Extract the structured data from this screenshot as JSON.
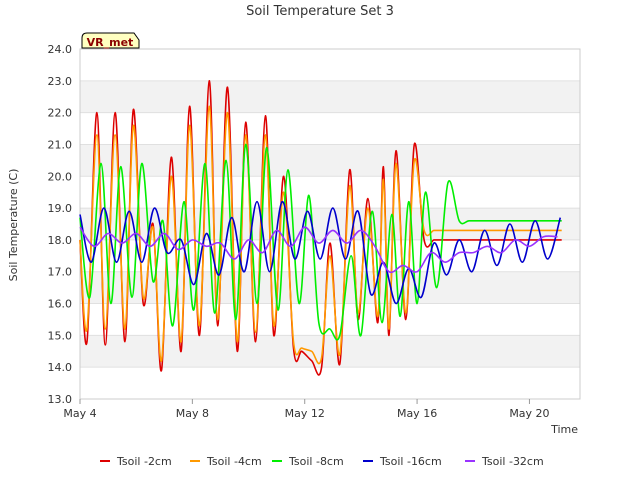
{
  "chart_data": {
    "type": "line",
    "title": "Soil Temperature Set 3",
    "xlabel": "Time",
    "ylabel": "Soil Temperature (C)",
    "badge": "VR_met",
    "ylim": [
      13.0,
      24.0
    ],
    "xlim": [
      4.0,
      21.8
    ],
    "yticks": [
      "13.0",
      "14.0",
      "15.0",
      "16.0",
      "17.0",
      "18.0",
      "19.0",
      "20.0",
      "21.0",
      "22.0",
      "23.0",
      "24.0"
    ],
    "yticks_values": [
      13,
      14,
      15,
      16,
      17,
      18,
      19,
      20,
      21,
      22,
      23,
      24
    ],
    "xticks": [
      "May 4",
      "May 8",
      "May 12",
      "May 16",
      "May 20"
    ],
    "xticks_values": [
      4,
      8,
      12,
      16,
      20
    ],
    "grid": true,
    "legend_position": "bottom",
    "series": [
      {
        "name": "Tsoil -2cm",
        "color": "#dd0000",
        "x": [
          4.0,
          4.25,
          4.6,
          4.9,
          5.25,
          5.6,
          5.9,
          6.25,
          6.6,
          6.9,
          7.25,
          7.6,
          7.9,
          8.25,
          8.6,
          8.9,
          9.25,
          9.6,
          9.9,
          10.25,
          10.6,
          10.9,
          11.25,
          11.6,
          11.9,
          12.25,
          12.6,
          12.9,
          13.25,
          13.6,
          13.9,
          14.25,
          14.6,
          14.8,
          15.0,
          15.25,
          15.6,
          15.9,
          16.25,
          16.6,
          16.9,
          17.25,
          17.6,
          17.9,
          18.25,
          18.6,
          18.9,
          19.25,
          19.6,
          19.9,
          20.25,
          20.6,
          20.9,
          21.15
        ],
        "y": [
          18.0,
          14.8,
          22.0,
          14.7,
          22.0,
          14.8,
          22.1,
          16.0,
          18.5,
          13.9,
          20.6,
          14.5,
          22.2,
          15.0,
          23.0,
          15.3,
          22.8,
          14.5,
          21.7,
          14.8,
          21.9,
          15.0,
          20.0,
          14.6,
          14.5,
          14.2,
          14.0,
          17.9,
          14.1,
          20.2,
          15.5,
          19.3,
          15.4,
          20.3,
          15.0,
          20.8,
          15.5,
          21.0,
          18.0,
          18.0,
          18.0,
          18.0,
          18.0,
          18.0,
          18.0,
          18.0,
          18.0,
          18.0,
          18.0,
          18.0,
          18.0,
          18.0,
          18.0,
          18.0
        ]
      },
      {
        "name": "Tsoil -4cm",
        "color": "#ff9900",
        "x": [
          4.0,
          4.25,
          4.6,
          4.9,
          5.25,
          5.6,
          5.9,
          6.25,
          6.6,
          6.9,
          7.25,
          7.6,
          7.9,
          8.25,
          8.6,
          8.9,
          9.25,
          9.6,
          9.9,
          10.25,
          10.6,
          10.9,
          11.25,
          11.6,
          11.9,
          12.25,
          12.6,
          12.9,
          13.25,
          13.6,
          13.9,
          14.25,
          14.6,
          14.8,
          15.0,
          15.25,
          15.6,
          15.9,
          16.25,
          16.6,
          16.9,
          17.25,
          17.6,
          17.9,
          18.25,
          18.6,
          18.9,
          19.25,
          19.6,
          19.9,
          20.25,
          20.6,
          20.9,
          21.15
        ],
        "y": [
          18.0,
          15.2,
          21.3,
          15.2,
          21.3,
          15.2,
          21.6,
          16.2,
          18.4,
          14.2,
          20.0,
          14.8,
          21.6,
          15.3,
          22.2,
          15.5,
          22.0,
          14.8,
          21.3,
          15.1,
          21.3,
          15.3,
          19.5,
          14.8,
          14.6,
          14.5,
          14.3,
          17.5,
          14.4,
          19.7,
          15.7,
          19.0,
          15.6,
          19.9,
          15.2,
          20.4,
          15.7,
          20.5,
          18.3,
          18.3,
          18.3,
          18.3,
          18.3,
          18.3,
          18.3,
          18.3,
          18.3,
          18.3,
          18.3,
          18.3,
          18.3,
          18.3,
          18.3,
          18.3
        ]
      },
      {
        "name": "Tsoil -8cm",
        "color": "#00ee00",
        "x": [
          4.0,
          4.35,
          4.75,
          5.1,
          5.45,
          5.85,
          6.2,
          6.6,
          6.95,
          7.3,
          7.7,
          8.05,
          8.45,
          8.8,
          9.2,
          9.55,
          9.9,
          10.3,
          10.65,
          11.05,
          11.4,
          11.8,
          12.15,
          12.5,
          12.9,
          13.25,
          13.65,
          14.0,
          14.4,
          14.75,
          15.1,
          15.4,
          15.7,
          16.0,
          16.3,
          16.7,
          17.1,
          17.5,
          17.85,
          18.25,
          18.6,
          19.0,
          19.35,
          19.7,
          20.1,
          20.45,
          20.85,
          21.15
        ],
        "y": [
          18.7,
          16.2,
          20.4,
          16.0,
          20.3,
          16.2,
          20.4,
          16.7,
          18.6,
          15.3,
          19.2,
          15.8,
          20.4,
          15.7,
          20.5,
          15.5,
          21.0,
          16.0,
          20.9,
          15.8,
          20.2,
          16.0,
          19.4,
          15.4,
          15.2,
          15.0,
          17.5,
          15.0,
          18.9,
          15.4,
          18.8,
          15.6,
          19.2,
          16.0,
          19.5,
          16.5,
          19.8,
          18.6,
          18.6,
          18.6,
          18.6,
          18.6,
          18.6,
          18.6,
          18.6,
          18.6,
          18.6,
          18.6
        ]
      },
      {
        "name": "Tsoil -16cm",
        "color": "#0000cc",
        "x": [
          4.0,
          4.4,
          4.85,
          5.3,
          5.75,
          6.2,
          6.65,
          7.1,
          7.6,
          8.05,
          8.5,
          8.95,
          9.4,
          9.85,
          10.3,
          10.75,
          11.2,
          11.65,
          12.1,
          12.55,
          13.0,
          13.45,
          13.9,
          14.35,
          14.8,
          15.25,
          15.7,
          16.15,
          16.6,
          17.05,
          17.5,
          17.95,
          18.4,
          18.85,
          19.3,
          19.75,
          20.2,
          20.65,
          21.1
        ],
        "y": [
          18.8,
          17.3,
          19.0,
          17.3,
          18.9,
          17.3,
          19.0,
          17.6,
          18.0,
          16.6,
          18.2,
          16.9,
          18.7,
          17.0,
          19.2,
          17.0,
          19.2,
          17.4,
          18.9,
          17.4,
          19.0,
          17.4,
          18.9,
          16.3,
          17.3,
          16.0,
          17.1,
          16.2,
          17.9,
          16.9,
          18.0,
          17.0,
          18.3,
          17.2,
          18.5,
          17.3,
          18.6,
          17.4,
          18.7
        ]
      },
      {
        "name": "Tsoil -32cm",
        "color": "#9933ff",
        "x": [
          4.0,
          4.5,
          5.0,
          5.5,
          6.0,
          6.5,
          7.0,
          7.5,
          8.0,
          8.5,
          9.0,
          9.5,
          10.0,
          10.5,
          11.0,
          11.5,
          12.0,
          12.5,
          13.0,
          13.5,
          14.0,
          14.5,
          15.0,
          15.5,
          16.0,
          16.5,
          17.0,
          17.5,
          18.0,
          18.5,
          19.0,
          19.5,
          20.0,
          20.5,
          21.0
        ],
        "y": [
          18.4,
          17.8,
          18.2,
          17.9,
          18.2,
          17.8,
          18.2,
          17.7,
          18.0,
          17.8,
          17.9,
          17.4,
          18.0,
          17.6,
          18.3,
          17.8,
          18.4,
          17.9,
          18.3,
          17.9,
          18.3,
          17.8,
          17.0,
          17.2,
          17.0,
          17.6,
          17.3,
          17.6,
          17.6,
          17.8,
          17.6,
          18.0,
          17.8,
          18.1,
          18.1
        ]
      }
    ]
  }
}
